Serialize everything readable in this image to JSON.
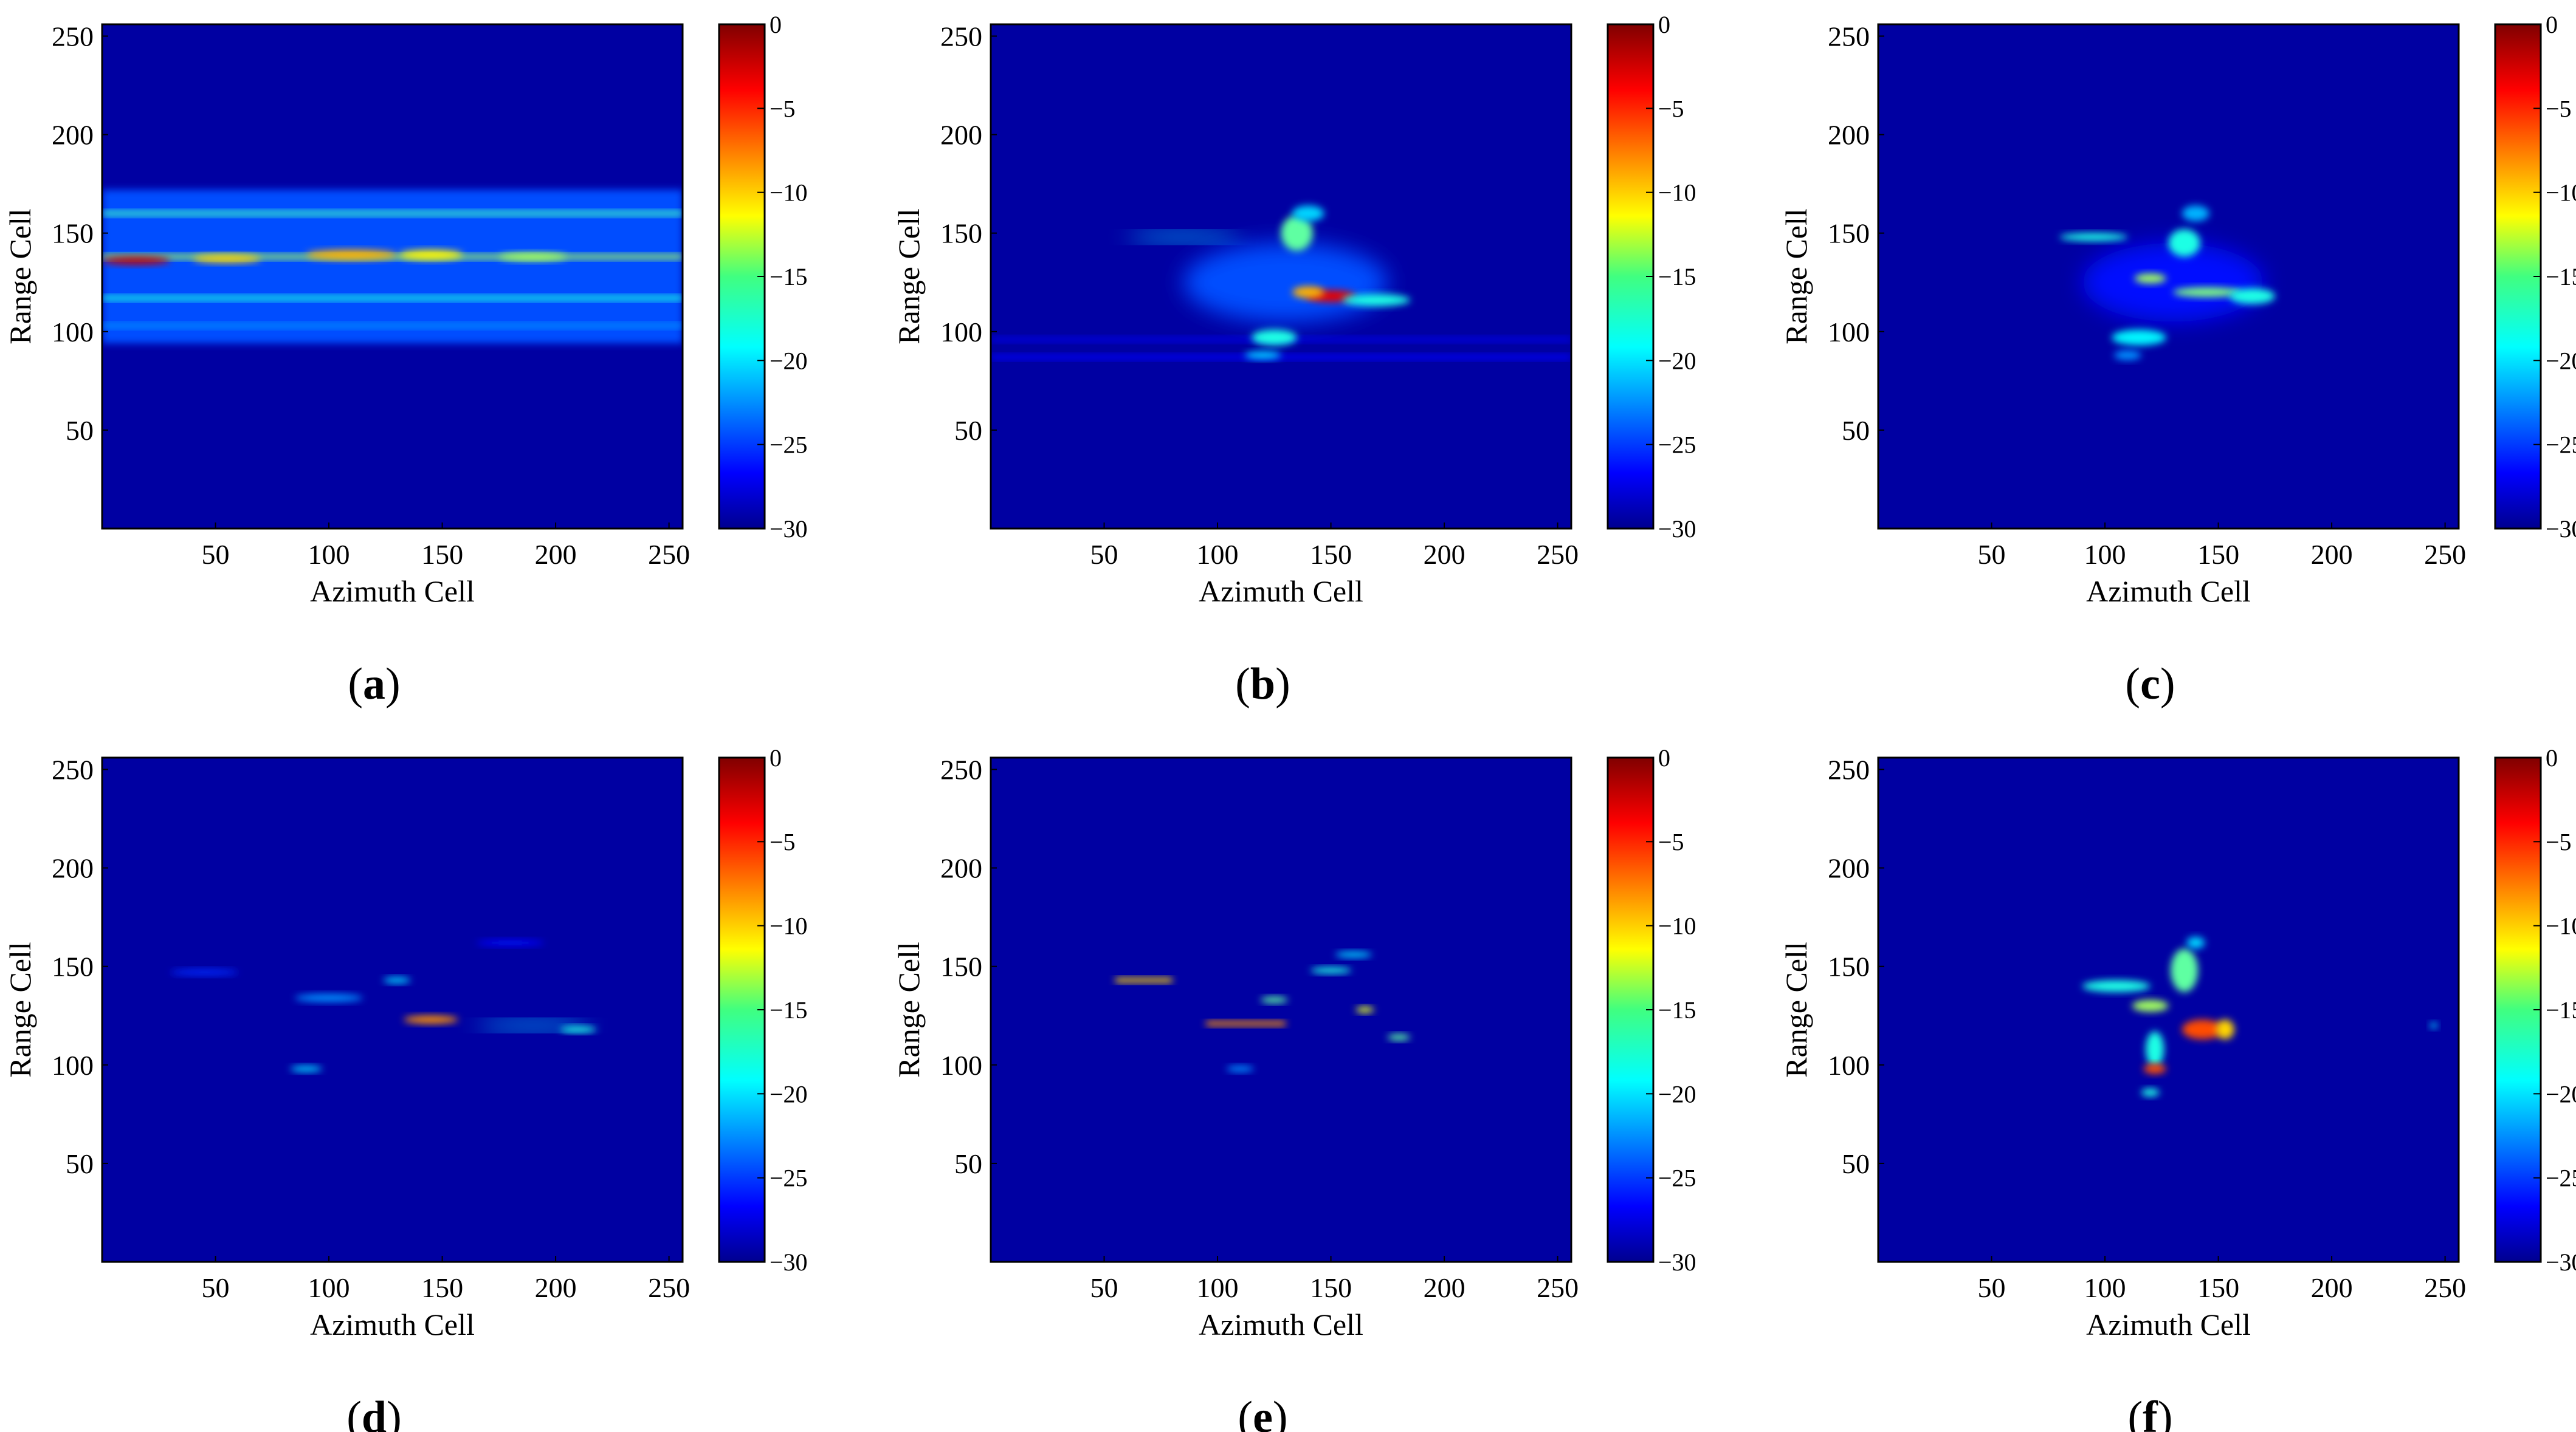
{
  "chart_data": [
    {
      "type": "heatmap",
      "panel_label": "a",
      "xlabel": "Azimuth Cell",
      "ylabel": "Range Cell",
      "xlim": [
        0,
        256
      ],
      "ylim": [
        0,
        256
      ],
      "xticks": [
        50,
        100,
        150,
        200,
        250
      ],
      "yticks": [
        50,
        100,
        150,
        200,
        250
      ],
      "colorbar": {
        "range": [
          -30,
          0
        ],
        "ticks": [
          0,
          -5,
          -10,
          -15,
          -20,
          -25,
          -30
        ],
        "colormap": "jet",
        "position": "right"
      },
      "features": [
        {
          "kind": "band",
          "y0": 94,
          "y1": 172,
          "level": -24
        },
        {
          "kind": "streak",
          "x0": 0,
          "x1": 256,
          "y": 160,
          "level": -17
        },
        {
          "kind": "streak",
          "x0": 0,
          "x1": 256,
          "y": 138,
          "level": -14
        },
        {
          "kind": "streak",
          "x0": 0,
          "x1": 256,
          "y": 117,
          "level": -18
        },
        {
          "kind": "streak",
          "x0": 0,
          "x1": 256,
          "y": 103,
          "level": -22
        },
        {
          "kind": "spot",
          "x": 15,
          "y": 136,
          "w": 30,
          "h": 4,
          "level": -2
        },
        {
          "kind": "spot",
          "x": 55,
          "y": 137,
          "w": 30,
          "h": 4,
          "level": -10
        },
        {
          "kind": "spot",
          "x": 110,
          "y": 139,
          "w": 40,
          "h": 5,
          "level": -9
        },
        {
          "kind": "spot",
          "x": 145,
          "y": 139,
          "w": 28,
          "h": 5,
          "level": -11
        },
        {
          "kind": "spot",
          "x": 190,
          "y": 138,
          "w": 30,
          "h": 4,
          "level": -14
        }
      ]
    },
    {
      "type": "heatmap",
      "panel_label": "b",
      "xlabel": "Azimuth Cell",
      "ylabel": "Range Cell",
      "xlim": [
        0,
        256
      ],
      "ylim": [
        0,
        256
      ],
      "xticks": [
        50,
        100,
        150,
        200,
        250
      ],
      "yticks": [
        50,
        100,
        150,
        200,
        250
      ],
      "colorbar": {
        "range": [
          -30,
          0
        ],
        "ticks": [
          0,
          -5,
          -10,
          -15,
          -20,
          -25,
          -30
        ],
        "colormap": "jet",
        "position": "right"
      },
      "features": [
        {
          "kind": "streak",
          "x0": 0,
          "x1": 256,
          "y": 87,
          "level": -26
        },
        {
          "kind": "streak",
          "x0": 0,
          "x1": 256,
          "y": 96,
          "level": -27
        },
        {
          "kind": "spot",
          "x": 130,
          "y": 125,
          "w": 90,
          "h": 40,
          "level": -24
        },
        {
          "kind": "spot",
          "x": 150,
          "y": 118,
          "w": 22,
          "h": 6,
          "level": -3
        },
        {
          "kind": "spot",
          "x": 140,
          "y": 120,
          "w": 14,
          "h": 6,
          "level": -9
        },
        {
          "kind": "spot",
          "x": 85,
          "y": 148,
          "w": 50,
          "h": 4,
          "level": -20
        },
        {
          "kind": "spot",
          "x": 135,
          "y": 150,
          "w": 14,
          "h": 18,
          "level": -16
        },
        {
          "kind": "spot",
          "x": 140,
          "y": 160,
          "w": 14,
          "h": 8,
          "level": -20
        },
        {
          "kind": "spot",
          "x": 125,
          "y": 97,
          "w": 20,
          "h": 8,
          "level": -18
        },
        {
          "kind": "spot",
          "x": 120,
          "y": 88,
          "w": 16,
          "h": 4,
          "level": -20
        },
        {
          "kind": "spot",
          "x": 170,
          "y": 116,
          "w": 30,
          "h": 6,
          "level": -18
        }
      ]
    },
    {
      "type": "heatmap",
      "panel_label": "c",
      "xlabel": "Azimuth Cell",
      "ylabel": "Range Cell",
      "xlim": [
        0,
        256
      ],
      "ylim": [
        0,
        256
      ],
      "xticks": [
        50,
        100,
        150,
        200,
        250
      ],
      "yticks": [
        50,
        100,
        150,
        200,
        250
      ],
      "colorbar": {
        "range": [
          -30,
          0
        ],
        "ticks": [
          0,
          -5,
          -10,
          -15,
          -20,
          -25,
          -30
        ],
        "colormap": "jet",
        "position": "right"
      },
      "features": [
        {
          "kind": "spot",
          "x": 130,
          "y": 125,
          "w": 80,
          "h": 40,
          "level": -26
        },
        {
          "kind": "spot",
          "x": 95,
          "y": 148,
          "w": 30,
          "h": 4,
          "level": -18
        },
        {
          "kind": "spot",
          "x": 120,
          "y": 127,
          "w": 14,
          "h": 5,
          "level": -14
        },
        {
          "kind": "spot",
          "x": 145,
          "y": 120,
          "w": 30,
          "h": 5,
          "level": -15
        },
        {
          "kind": "spot",
          "x": 135,
          "y": 145,
          "w": 14,
          "h": 14,
          "level": -18
        },
        {
          "kind": "spot",
          "x": 140,
          "y": 160,
          "w": 12,
          "h": 8,
          "level": -21
        },
        {
          "kind": "spot",
          "x": 165,
          "y": 118,
          "w": 20,
          "h": 8,
          "level": -18
        },
        {
          "kind": "spot",
          "x": 115,
          "y": 97,
          "w": 24,
          "h": 8,
          "level": -19
        },
        {
          "kind": "spot",
          "x": 110,
          "y": 88,
          "w": 12,
          "h": 5,
          "level": -22
        }
      ]
    },
    {
      "type": "heatmap",
      "panel_label": "d",
      "xlabel": "Azimuth Cell",
      "ylabel": "Range Cell",
      "xlim": [
        0,
        256
      ],
      "ylim": [
        0,
        256
      ],
      "xticks": [
        50,
        100,
        150,
        200,
        250
      ],
      "yticks": [
        50,
        100,
        150,
        200,
        250
      ],
      "colorbar": {
        "range": [
          -30,
          0
        ],
        "ticks": [
          0,
          -5,
          -10,
          -15,
          -20,
          -25,
          -30
        ],
        "colormap": "jet",
        "position": "right"
      },
      "features": [
        {
          "kind": "spot",
          "x": 145,
          "y": 123,
          "w": 24,
          "h": 4,
          "level": -8
        },
        {
          "kind": "spot",
          "x": 190,
          "y": 120,
          "w": 50,
          "h": 4,
          "level": -20
        },
        {
          "kind": "spot",
          "x": 100,
          "y": 134,
          "w": 30,
          "h": 4,
          "level": -22
        },
        {
          "kind": "spot",
          "x": 130,
          "y": 143,
          "w": 12,
          "h": 3,
          "level": -20
        },
        {
          "kind": "spot",
          "x": 45,
          "y": 147,
          "w": 30,
          "h": 3,
          "level": -25
        },
        {
          "kind": "spot",
          "x": 90,
          "y": 98,
          "w": 14,
          "h": 3,
          "level": -20
        },
        {
          "kind": "spot",
          "x": 180,
          "y": 162,
          "w": 30,
          "h": 3,
          "level": -26
        },
        {
          "kind": "spot",
          "x": 210,
          "y": 118,
          "w": 16,
          "h": 3,
          "level": -18
        }
      ]
    },
    {
      "type": "heatmap",
      "panel_label": "e",
      "xlabel": "Azimuth Cell",
      "ylabel": "Range Cell",
      "xlim": [
        0,
        256
      ],
      "ylim": [
        0,
        256
      ],
      "xticks": [
        50,
        100,
        150,
        200,
        250
      ],
      "yticks": [
        50,
        100,
        150,
        200,
        250
      ],
      "colorbar": {
        "range": [
          -30,
          0
        ],
        "ticks": [
          0,
          -5,
          -10,
          -15,
          -20,
          -25,
          -30
        ],
        "colormap": "jet",
        "position": "right"
      },
      "features": [
        {
          "kind": "streak",
          "x0": 95,
          "x1": 130,
          "y": 121,
          "level": -8
        },
        {
          "kind": "streak",
          "x0": 55,
          "x1": 80,
          "y": 143,
          "level": -10
        },
        {
          "kind": "spot",
          "x": 150,
          "y": 148,
          "w": 18,
          "h": 3,
          "level": -18
        },
        {
          "kind": "spot",
          "x": 160,
          "y": 156,
          "w": 16,
          "h": 2,
          "level": -20
        },
        {
          "kind": "spot",
          "x": 165,
          "y": 128,
          "w": 8,
          "h": 3,
          "level": -12
        },
        {
          "kind": "spot",
          "x": 180,
          "y": 114,
          "w": 10,
          "h": 2,
          "level": -16
        },
        {
          "kind": "spot",
          "x": 110,
          "y": 98,
          "w": 12,
          "h": 3,
          "level": -22
        },
        {
          "kind": "spot",
          "x": 125,
          "y": 133,
          "w": 12,
          "h": 2,
          "level": -16
        }
      ]
    },
    {
      "type": "heatmap",
      "panel_label": "f",
      "xlabel": "Azimuth Cell",
      "ylabel": "Range Cell",
      "xlim": [
        0,
        256
      ],
      "ylim": [
        0,
        256
      ],
      "xticks": [
        50,
        100,
        150,
        200,
        250
      ],
      "yticks": [
        50,
        100,
        150,
        200,
        250
      ],
      "colorbar": {
        "range": [
          -30,
          0
        ],
        "ticks": [
          0,
          -5,
          -10,
          -15,
          -20,
          -25,
          -30
        ],
        "colormap": "jet",
        "position": "right"
      },
      "features": [
        {
          "kind": "spot",
          "x": 105,
          "y": 140,
          "w": 30,
          "h": 6,
          "level": -18
        },
        {
          "kind": "spot",
          "x": 120,
          "y": 130,
          "w": 16,
          "h": 6,
          "level": -14
        },
        {
          "kind": "spot",
          "x": 135,
          "y": 148,
          "w": 12,
          "h": 22,
          "level": -16
        },
        {
          "kind": "spot",
          "x": 140,
          "y": 162,
          "w": 8,
          "h": 6,
          "level": -20
        },
        {
          "kind": "spot",
          "x": 143,
          "y": 118,
          "w": 18,
          "h": 10,
          "level": -6
        },
        {
          "kind": "spot",
          "x": 153,
          "y": 118,
          "w": 8,
          "h": 10,
          "level": -10
        },
        {
          "kind": "spot",
          "x": 122,
          "y": 108,
          "w": 8,
          "h": 18,
          "level": -18
        },
        {
          "kind": "spot",
          "x": 122,
          "y": 98,
          "w": 10,
          "h": 5,
          "level": -6
        },
        {
          "kind": "spot",
          "x": 120,
          "y": 86,
          "w": 8,
          "h": 4,
          "level": -18
        },
        {
          "kind": "spot",
          "x": 245,
          "y": 120,
          "w": 3,
          "h": 3,
          "level": -20
        }
      ]
    }
  ]
}
